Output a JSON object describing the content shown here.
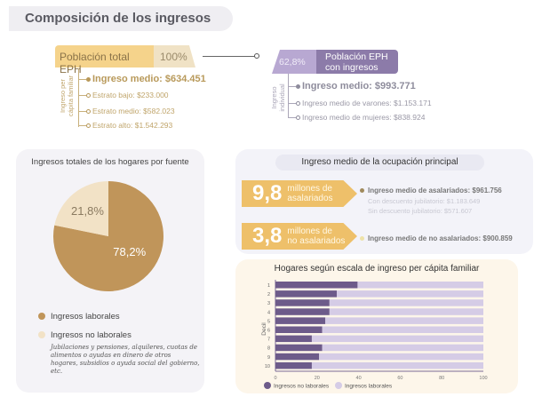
{
  "title": "Composición de los ingresos",
  "population_total": {
    "label": "Población total EPH",
    "percent": "100%"
  },
  "per_capita": {
    "axis_label": "Ingreso per cápita familiar",
    "main": "Ingreso medio: $634.451",
    "items": [
      "Estrato bajo: $233.000",
      "Estrato medio: $582.023",
      "Estrato alto: $1.542.293"
    ]
  },
  "population_income": {
    "percent": "62,8%",
    "label_line1": "Población EPH",
    "label_line2": "con ingresos"
  },
  "individual": {
    "axis_label": "Ingreso individual",
    "main": "Ingreso medio: $993.771",
    "items": [
      "Ingreso medio de varones: $1.153.171",
      "Ingreso medio de mujeres: $838.924"
    ]
  },
  "pie_panel": {
    "title": "Ingresos totales de los hogares por fuente",
    "legend": [
      "Ingresos laborales",
      "Ingresos no laborales"
    ],
    "note": "Jubilaciones y pensiones, alquileres, cuotas de alimentos o ayudas en dinero de otros hogares, subsidios o ayuda social del gobierno, etc."
  },
  "occupation": {
    "title": "Ingreso medio de la ocupación principal",
    "salaried": {
      "number": "9,8",
      "label_line1": "millones de",
      "label_line2": "asalariados",
      "main": "Ingreso medio de asalariados: $961.756",
      "sub1": "Con descuento jubilatorio: $1.183.649",
      "sub2": "Sin descuento jubilatorio: $571.607"
    },
    "non_salaried": {
      "number": "3,8",
      "label_line1": "millones de",
      "label_line2": "no asalariados",
      "main": "Ingreso medio de no asalariados: $900.859"
    }
  },
  "chart_data": [
    {
      "type": "pie",
      "title": "Ingresos totales de los hogares por fuente",
      "slices": [
        {
          "name": "Ingresos laborales",
          "value": 78.2,
          "label": "78,2%",
          "color": "#c0955a"
        },
        {
          "name": "Ingresos no laborales",
          "value": 21.8,
          "label": "21,8%",
          "color": "#f2e2c6"
        }
      ]
    },
    {
      "type": "bar",
      "orientation": "horizontal",
      "stacked": true,
      "title": "Hogares según escala de ingreso per cápita familiar",
      "ylabel": "Decil",
      "categories": [
        "1",
        "2",
        "3",
        "4",
        "5",
        "6",
        "7",
        "8",
        "9",
        "10"
      ],
      "xlim": [
        0,
        100
      ],
      "xticks": [
        "0",
        "20",
        "40",
        "60",
        "80",
        "100"
      ],
      "legend_position": "bottom-left",
      "series": [
        {
          "name": "Ingresos no laborales",
          "color": "#6d5b8a",
          "values": [
            39.5,
            29.5,
            26,
            26,
            24,
            22.5,
            17.5,
            22.5,
            21,
            17.5
          ]
        },
        {
          "name": "Ingresos laborales",
          "color": "#d5cce6",
          "values": [
            60.5,
            70.5,
            74,
            74,
            76,
            77.5,
            82.5,
            77.5,
            79,
            82.5
          ]
        }
      ]
    }
  ]
}
